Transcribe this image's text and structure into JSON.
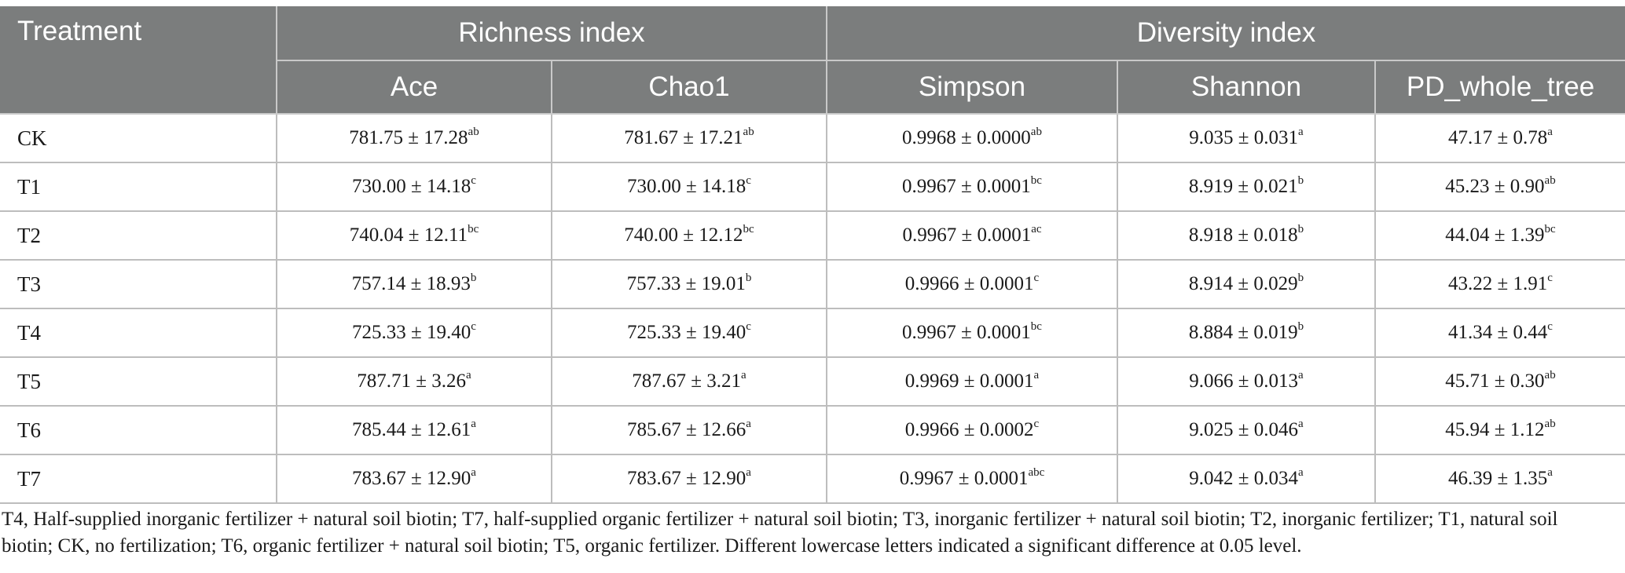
{
  "table": {
    "header": {
      "treatment": "Treatment",
      "richness_group": "Richness index",
      "diversity_group": "Diversity index",
      "columns": [
        "Ace",
        "Chao1",
        "Simpson",
        "Shannon",
        "PD_whole_tree"
      ]
    },
    "rows": [
      {
        "name": "CK",
        "cells": [
          {
            "v": "781.75 ± 17.28",
            "sup": "ab"
          },
          {
            "v": "781.67 ± 17.21",
            "sup": "ab"
          },
          {
            "v": "0.9968 ± 0.0000",
            "sup": "ab"
          },
          {
            "v": "9.035 ± 0.031",
            "sup": "a"
          },
          {
            "v": "47.17 ± 0.78",
            "sup": "a"
          }
        ]
      },
      {
        "name": "T1",
        "cells": [
          {
            "v": "730.00 ± 14.18",
            "sup": "c"
          },
          {
            "v": "730.00 ± 14.18",
            "sup": "c"
          },
          {
            "v": "0.9967 ± 0.0001",
            "sup": "bc"
          },
          {
            "v": "8.919 ± 0.021",
            "sup": "b"
          },
          {
            "v": "45.23 ± 0.90",
            "sup": "ab"
          }
        ]
      },
      {
        "name": "T2",
        "cells": [
          {
            "v": "740.04 ± 12.11",
            "sup": "bc"
          },
          {
            "v": "740.00 ± 12.12",
            "sup": "bc"
          },
          {
            "v": "0.9967 ± 0.0001",
            "sup": "ac"
          },
          {
            "v": "8.918 ± 0.018",
            "sup": "b"
          },
          {
            "v": "44.04 ± 1.39",
            "sup": "bc"
          }
        ]
      },
      {
        "name": "T3",
        "cells": [
          {
            "v": "757.14 ± 18.93",
            "sup": "b"
          },
          {
            "v": "757.33 ± 19.01",
            "sup": "b"
          },
          {
            "v": "0.9966 ± 0.0001",
            "sup": "c"
          },
          {
            "v": "8.914 ± 0.029",
            "sup": "b"
          },
          {
            "v": "43.22 ± 1.91",
            "sup": "c"
          }
        ]
      },
      {
        "name": "T4",
        "cells": [
          {
            "v": "725.33 ± 19.40",
            "sup": "c"
          },
          {
            "v": "725.33 ± 19.40",
            "sup": "c"
          },
          {
            "v": "0.9967 ± 0.0001",
            "sup": "bc"
          },
          {
            "v": "8.884 ± 0.019",
            "sup": "b"
          },
          {
            "v": "41.34 ± 0.44",
            "sup": "c"
          }
        ]
      },
      {
        "name": "T5",
        "cells": [
          {
            "v": "787.71 ± 3.26",
            "sup": "a"
          },
          {
            "v": "787.67 ± 3.21",
            "sup": "a"
          },
          {
            "v": "0.9969 ± 0.0001",
            "sup": "a"
          },
          {
            "v": "9.066 ± 0.013",
            "sup": "a"
          },
          {
            "v": "45.71 ± 0.30",
            "sup": "ab"
          }
        ]
      },
      {
        "name": "T6",
        "cells": [
          {
            "v": "785.44 ± 12.61",
            "sup": "a"
          },
          {
            "v": "785.67 ± 12.66",
            "sup": "a"
          },
          {
            "v": "0.9966 ± 0.0002",
            "sup": "c"
          },
          {
            "v": "9.025 ± 0.046",
            "sup": "a"
          },
          {
            "v": "45.94 ± 1.12",
            "sup": "ab"
          }
        ]
      },
      {
        "name": "T7",
        "cells": [
          {
            "v": "783.67 ± 12.90",
            "sup": "a"
          },
          {
            "v": "783.67 ± 12.90",
            "sup": "a"
          },
          {
            "v": "0.9967 ± 0.0001",
            "sup": "abc"
          },
          {
            "v": "9.042 ± 0.034",
            "sup": "a"
          },
          {
            "v": "46.39 ± 1.35",
            "sup": "a"
          }
        ]
      }
    ]
  },
  "footnote": "T4, Half-supplied inorganic fertilizer + natural soil biotin; T7, half-supplied organic fertilizer + natural soil biotin; T3, inorganic fertilizer + natural soil biotin; T2, inorganic fertilizer; T1, natural soil biotin; CK, no fertilization; T6, organic fertilizer + natural soil biotin; T5, organic fertilizer. Different lowercase letters indicated a significant difference at 0.05 level.",
  "colors": {
    "header_bg": "#7b7d7d",
    "header_text": "#ffffff",
    "grid": "#bdbdbd"
  }
}
